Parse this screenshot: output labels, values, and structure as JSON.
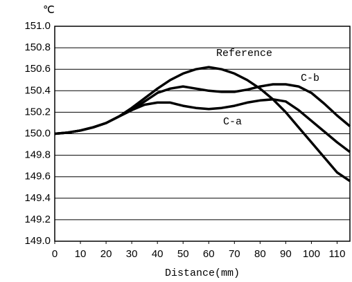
{
  "chart_data": {
    "type": "line",
    "unit_label": "℃",
    "x_label": "Distance(mm)",
    "annotations": [
      "Reference",
      "C-b",
      "C-a"
    ],
    "x": [
      0,
      5,
      10,
      15,
      20,
      25,
      30,
      35,
      40,
      45,
      50,
      55,
      60,
      65,
      70,
      75,
      80,
      85,
      90,
      95,
      100,
      105,
      110,
      115
    ],
    "series": [
      {
        "name": "Reference",
        "color": "#000000",
        "values": [
          150.0,
          150.01,
          150.03,
          150.06,
          150.1,
          150.16,
          150.24,
          150.33,
          150.42,
          150.5,
          150.56,
          150.6,
          150.62,
          150.6,
          150.56,
          150.5,
          150.42,
          150.32,
          150.2,
          150.06,
          149.92,
          149.78,
          149.64,
          149.56
        ]
      },
      {
        "name": "C-b",
        "color": "#000000",
        "values": [
          150.0,
          150.01,
          150.03,
          150.06,
          150.1,
          150.16,
          150.22,
          150.3,
          150.38,
          150.42,
          150.44,
          150.42,
          150.4,
          150.39,
          150.39,
          150.41,
          150.44,
          150.46,
          150.46,
          150.44,
          150.38,
          150.28,
          150.17,
          150.07
        ]
      },
      {
        "name": "C-a",
        "color": "#000000",
        "values": [
          150.0,
          150.01,
          150.03,
          150.06,
          150.1,
          150.16,
          150.22,
          150.27,
          150.29,
          150.29,
          150.26,
          150.24,
          150.23,
          150.24,
          150.26,
          150.29,
          150.31,
          150.32,
          150.3,
          150.22,
          150.12,
          150.02,
          149.92,
          149.83
        ]
      }
    ],
    "xlim": [
      0,
      115
    ],
    "xticks": [
      0,
      10,
      20,
      30,
      40,
      50,
      60,
      70,
      80,
      90,
      100,
      110
    ],
    "ylim": [
      149.0,
      151.0
    ],
    "yticks": [
      {
        "value": 149.0,
        "label": "149.0"
      },
      149.2,
      149.4,
      149.6,
      149.8,
      {
        "value": 150.0,
        "label": "150.0"
      },
      150.2,
      150.4,
      150.6,
      150.8,
      {
        "value": 151.0,
        "label": "151.0"
      }
    ],
    "grid": true
  }
}
